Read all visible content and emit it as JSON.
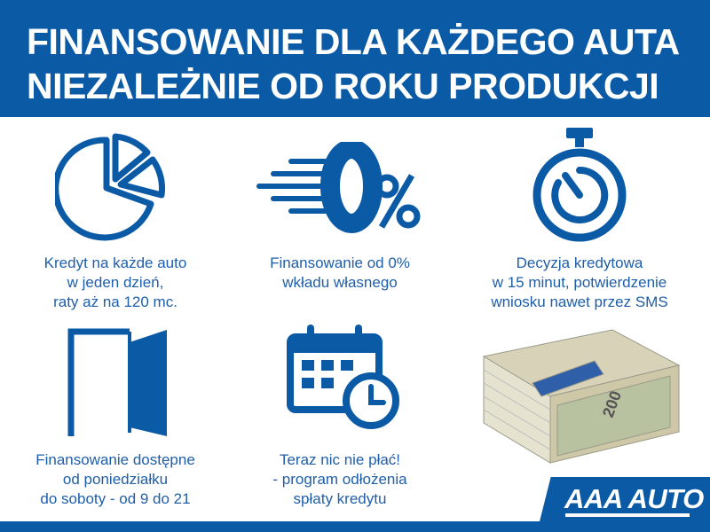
{
  "header": {
    "line1": "FINANSOWANIE DLA KAŻDEGO AUTA",
    "line2": "NIEZALEŻNIE OD ROKU PRODUKCJI"
  },
  "features": [
    {
      "icon": "pie-chart-icon",
      "lines": [
        "Kredyt na każde auto",
        "w jeden dzień,",
        "raty aż na 120 mc."
      ]
    },
    {
      "icon": "zero-percent-icon",
      "lines": [
        "Finansowanie od 0%",
        "wkładu własnego"
      ]
    },
    {
      "icon": "stopwatch-icon",
      "lines": [
        "Decyzja kredytowa",
        "w 15 minut, potwierdzenie",
        "wniosku nawet przez SMS"
      ]
    },
    {
      "icon": "door-icon",
      "lines": [
        "Finansowanie dostępne",
        "od poniedziałku",
        "do soboty - od 9 do 21"
      ]
    },
    {
      "icon": "calendar-clock-icon",
      "lines": [
        "Teraz nic nie płać!",
        "- program odłożenia",
        "spłaty kredytu"
      ]
    },
    {
      "icon": "money-stack-icon",
      "banknote_value": "200"
    }
  ],
  "logo": {
    "text": "AAA AUTO"
  },
  "colors": {
    "brand_blue": "#0b5aa6",
    "text_blue": "#1f5ea8"
  }
}
